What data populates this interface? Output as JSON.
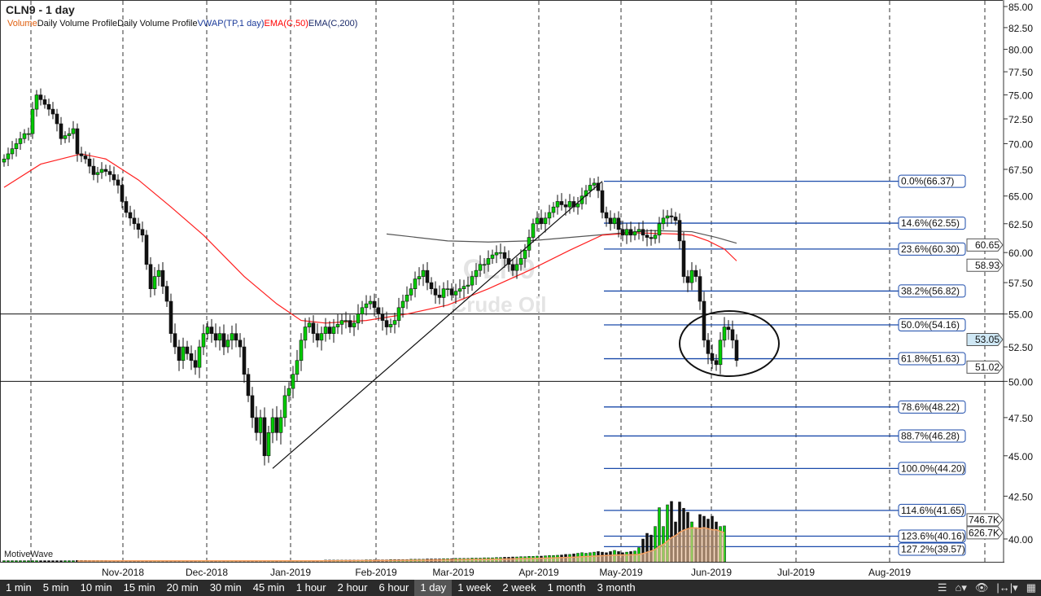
{
  "header": {
    "title": "CLN9 - 1 day"
  },
  "legend": [
    {
      "text": "Volume",
      "color": "#e06010"
    },
    {
      "text": "Daily Volume Profile",
      "color": "#111111"
    },
    {
      "text": "Daily Volume Profile",
      "color": "#111111"
    },
    {
      "text": "VWAP(TP,1 day)",
      "color": "#1a3a9a"
    },
    {
      "text": "EMA(C,50)",
      "color": "#ff0000"
    },
    {
      "text": "EMA(C,200)",
      "color": "#1a2a6a"
    }
  ],
  "watermark": {
    "symbol": "CLN9",
    "name": "Crude Oil"
  },
  "brand": "MotiveWave",
  "toolbar": {
    "timeframes": [
      "1 min",
      "5 min",
      "10 min",
      "15 min",
      "20 min",
      "30 min",
      "45 min",
      "1 hour",
      "2 hour",
      "6 hour",
      "1 day",
      "1 week",
      "2 week",
      "1 month",
      "3 month"
    ],
    "selected": "1 day",
    "icons": [
      "menu-icon",
      "chart-add-icon",
      "eye-icon",
      "fit-width-icon",
      "calendar-icon"
    ]
  },
  "chart_data": {
    "type": "candlestick",
    "scale": "log",
    "ylim": [
      40,
      85
    ],
    "y_ticks": [
      "85.00",
      "82.50",
      "80.00",
      "77.50",
      "75.00",
      "72.50",
      "70.00",
      "67.50",
      "65.00",
      "62.50",
      "60.00",
      "57.50",
      "55.00",
      "52.50",
      "50.00",
      "47.50",
      "45.00",
      "42.50",
      "40.00"
    ],
    "x_ticks": [
      "Nov-2018",
      "Dec-2018",
      "Jan-2019",
      "Feb-2019",
      "Mar-2019",
      "Apr-2019",
      "May-2019",
      "Jun-2019",
      "Jul-2019",
      "Aug-2019"
    ],
    "closes": [
      68.5,
      69,
      69.5,
      70,
      70.5,
      71,
      71,
      73.5,
      75,
      74.5,
      74,
      73.5,
      73,
      72,
      70.5,
      70.8,
      71,
      71.5,
      69,
      68.8,
      68.5,
      67.8,
      67,
      67.2,
      67.5,
      67.3,
      67,
      66.5,
      66,
      64.5,
      63.5,
      63,
      62.5,
      62,
      61.5,
      59,
      57,
      58,
      58.5,
      57.2,
      56,
      53.5,
      52.5,
      51.5,
      52.5,
      52,
      51.5,
      51,
      52.5,
      53.5,
      54,
      53.5,
      53,
      53.5,
      52.5,
      53,
      53.5,
      53,
      52.5,
      50.5,
      49,
      47.5,
      46.5,
      47.5,
      45,
      46.5,
      47.5,
      46.5,
      47.5,
      49,
      49.5,
      50.5,
      51.5,
      53,
      54,
      54.3,
      53.5,
      53,
      53.5,
      54,
      53.5,
      54,
      54.2,
      54.5,
      54.5,
      54,
      54.3,
      55,
      55.5,
      55.8,
      56,
      55.5,
      55,
      54.5,
      54,
      54.2,
      54.5,
      55.5,
      56,
      56.5,
      57,
      57.8,
      58,
      58.5,
      57.5,
      57,
      56.5,
      56.3,
      57,
      57,
      56.5,
      56.8,
      57,
      57.2,
      57.3,
      58,
      58.5,
      59,
      59,
      59.5,
      59.8,
      60,
      60,
      59.5,
      59,
      58.5,
      59,
      59.5,
      60.2,
      61.3,
      62.5,
      63,
      62.5,
      63,
      63.5,
      64,
      64.5,
      64.2,
      64,
      64.5,
      64,
      64.3,
      65,
      65.5,
      66,
      66.2,
      65.5,
      63.5,
      63,
      62.5,
      63,
      62,
      61.5,
      62,
      61.5,
      61.8,
      62,
      61.5,
      61.3,
      61.2,
      61.5,
      62.5,
      63,
      63.2,
      63.1,
      62.8,
      61,
      58,
      57.5,
      58.5,
      58,
      56,
      53,
      52,
      51.5,
      51.2,
      53,
      54,
      53.8,
      53,
      51.5
    ],
    "volume_k": [
      20,
      20,
      20,
      20,
      20,
      20,
      20,
      20,
      20,
      20,
      20,
      20,
      20,
      20,
      20,
      20,
      20,
      20,
      25,
      25,
      25,
      25,
      25,
      25,
      25,
      25,
      25,
      25,
      25,
      25,
      25,
      25,
      25,
      25,
      25,
      25,
      25,
      25,
      25,
      25,
      25,
      25,
      25,
      25,
      25,
      25,
      25,
      25,
      25,
      25,
      25,
      25,
      25,
      25,
      25,
      25,
      25,
      25,
      25,
      25,
      25,
      25,
      25,
      25,
      25,
      25,
      25,
      25,
      25,
      25,
      25,
      25,
      25,
      25,
      25,
      25,
      25,
      25,
      25,
      30,
      30,
      30,
      30,
      30,
      30,
      30,
      30,
      30,
      30,
      35,
      35,
      35,
      35,
      35,
      35,
      40,
      40,
      40,
      40,
      40,
      45,
      45,
      45,
      45,
      50,
      50,
      50,
      50,
      55,
      55,
      55,
      60,
      60,
      60,
      60,
      65,
      65,
      65,
      70,
      70,
      70,
      75,
      75,
      80,
      80,
      85,
      85,
      90,
      90,
      95,
      95,
      100,
      100,
      105,
      110,
      110,
      115,
      120,
      130,
      130,
      140,
      150,
      160,
      150,
      160,
      170,
      180,
      170,
      160,
      180,
      200,
      180,
      160,
      170,
      180,
      190,
      250,
      400,
      500,
      470,
      620,
      950,
      620,
      1000,
      1060,
      700,
      1050,
      940,
      870,
      700,
      600,
      830,
      800,
      750,
      800,
      700,
      620,
      630
    ],
    "ema50": [
      [
        0,
        65.8
      ],
      [
        9,
        68
      ],
      [
        19,
        69
      ],
      [
        25,
        68.5
      ],
      [
        33,
        66.5
      ],
      [
        41,
        64
      ],
      [
        49,
        61.5
      ],
      [
        59,
        58
      ],
      [
        67,
        55.8
      ],
      [
        73,
        54.5
      ],
      [
        79,
        54.3
      ],
      [
        89,
        54.5
      ],
      [
        99,
        55
      ],
      [
        109,
        55.7
      ],
      [
        119,
        57
      ],
      [
        129,
        58.5
      ],
      [
        139,
        60.2
      ],
      [
        147,
        61.5
      ],
      [
        155,
        61.7
      ],
      [
        165,
        61.6
      ],
      [
        169,
        61.5
      ],
      [
        173,
        61
      ],
      [
        177,
        60.3
      ],
      [
        180,
        59.3
      ]
    ],
    "ema200": [
      [
        94,
        61.6
      ],
      [
        109,
        61.0
      ],
      [
        119,
        60.9
      ],
      [
        129,
        61.0
      ],
      [
        139,
        61.3
      ],
      [
        149,
        61.6
      ],
      [
        159,
        61.9
      ],
      [
        169,
        61.8
      ],
      [
        175,
        61.3
      ],
      [
        180,
        60.8
      ]
    ],
    "fib_levels": [
      {
        "pct": "0.0%",
        "price": 66.37
      },
      {
        "pct": "14.6%",
        "price": 62.55
      },
      {
        "pct": "23.6%",
        "price": 60.3
      },
      {
        "pct": "38.2%",
        "price": 56.82
      },
      {
        "pct": "50.0%",
        "price": 54.16
      },
      {
        "pct": "61.8%",
        "price": 51.63
      },
      {
        "pct": "78.6%",
        "price": 48.22
      },
      {
        "pct": "88.7%",
        "price": 46.28
      },
      {
        "pct": "100.0%",
        "price": 44.2
      },
      {
        "pct": "114.6%",
        "price": 41.65
      },
      {
        "pct": "123.6%",
        "price": 40.16
      },
      {
        "pct": "127.2%",
        "price": 39.57
      }
    ],
    "horizontal_lines": [
      55.0,
      50.0
    ],
    "trend_line": [
      [
        66,
        44.2
      ],
      [
        147,
        66.37
      ]
    ],
    "axis_markers": [
      {
        "text": "60.65",
        "price": 60.65,
        "bg": "#ffffff",
        "border": "#555"
      },
      {
        "text": "58.93",
        "price": 58.93,
        "bg": "#ffffff",
        "border": "#555"
      },
      {
        "text": "53.05",
        "price": 53.05,
        "bg": "#cfe8f5",
        "border": "#555"
      },
      {
        "text": "51.02",
        "price": 51.02,
        "bg": "#ffffff",
        "border": "#555"
      },
      {
        "text": "746.7K",
        "price": 41.1,
        "bg": "#ffffff",
        "border": "#555"
      },
      {
        "text": "626.7K",
        "price": 40.4,
        "bg": "#ffffff",
        "border": "#555"
      }
    ],
    "colors": {
      "up": "#00cc00",
      "down": "#111111",
      "fib": "#1a4aaa",
      "ema50": "#ff2020",
      "ema200": "#555555",
      "volume_avg": "#f5a060"
    }
  }
}
